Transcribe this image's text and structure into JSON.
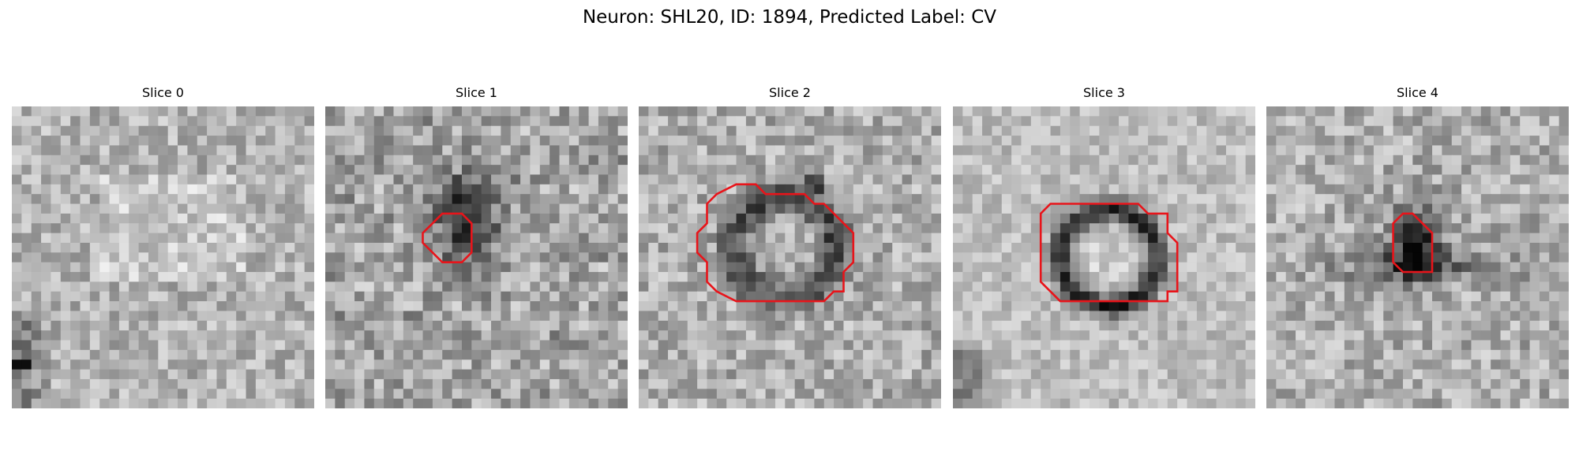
{
  "figure": {
    "title": "Neuron: SHL20, ID: 1894, Predicted Label: CV"
  },
  "panels": [
    {
      "title": "Slice 0",
      "has_roi_outline": false
    },
    {
      "title": "Slice 1",
      "has_roi_outline": true
    },
    {
      "title": "Slice 2",
      "has_roi_outline": true
    },
    {
      "title": "Slice 3",
      "has_roi_outline": true
    },
    {
      "title": "Slice 4",
      "has_roi_outline": true
    }
  ],
  "colors": {
    "roi_outline": "#e8141a",
    "colormap": "gray"
  }
}
